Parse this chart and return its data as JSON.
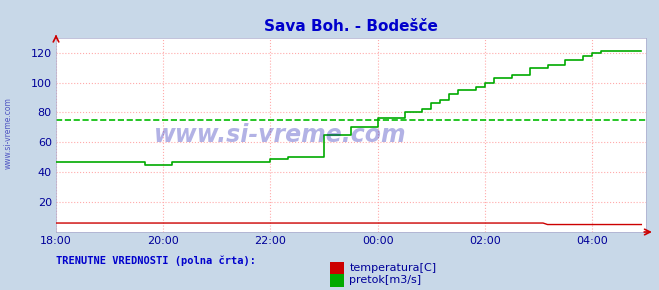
{
  "title": "Sava Boh. - Bodešče",
  "title_color": "#0000cc",
  "bg_color": "#c8d8e8",
  "plot_bg_color": "#ffffff",
  "grid_color": "#ffaaaa",
  "grid_style": ":",
  "xlabel_color": "#000099",
  "ylabel_color": "#000099",
  "watermark": "www.si-vreme.com",
  "watermark_color": "#0000aa",
  "legend_label": "TRENUTNE VREDNOSTI (polna črta):",
  "legend_label_color": "#0000cc",
  "temp_label": "temperatura[C]",
  "pretok_label": "pretok[m3/s]",
  "temp_color": "#cc0000",
  "pretok_color": "#00aa00",
  "avg_pretok_color": "#00bb00",
  "avg_pretok_value": 75.0,
  "ylim": [
    0,
    130
  ],
  "yticks": [
    20,
    40,
    60,
    80,
    100,
    120
  ],
  "xtick_labels": [
    "18:00",
    "20:00",
    "22:00",
    "00:00",
    "02:00",
    "04:00"
  ],
  "tick_positions": [
    0,
    24,
    48,
    72,
    96,
    120
  ],
  "arrow_color": "#cc0000",
  "side_label": "www.si-vreme.com",
  "figsize": [
    6.59,
    2.9
  ],
  "dpi": 100,
  "n_points": 132,
  "pretok": [
    47,
    47,
    47,
    47,
    47,
    47,
    47,
    47,
    47,
    47,
    47,
    47,
    47,
    47,
    47,
    47,
    47,
    47,
    47,
    47,
    45,
    45,
    45,
    45,
    45,
    45,
    47,
    47,
    47,
    47,
    47,
    47,
    47,
    47,
    47,
    47,
    47,
    47,
    47,
    47,
    47,
    47,
    47,
    47,
    47,
    47,
    47,
    47,
    49,
    49,
    49,
    49,
    50,
    50,
    50,
    50,
    50,
    50,
    50,
    50,
    65,
    65,
    65,
    65,
    65,
    65,
    70,
    70,
    70,
    70,
    70,
    70,
    76,
    76,
    76,
    76,
    76,
    76,
    80,
    80,
    80,
    80,
    82,
    82,
    86,
    86,
    88,
    88,
    92,
    92,
    95,
    95,
    95,
    95,
    97,
    97,
    100,
    100,
    103,
    103,
    103,
    103,
    105,
    105,
    105,
    105,
    110,
    110,
    110,
    110,
    112,
    112,
    112,
    112,
    115,
    115,
    115,
    115,
    118,
    118,
    120,
    120,
    121,
    121,
    121,
    121,
    121,
    121,
    121,
    121,
    121,
    121
  ],
  "temp": [
    6,
    6,
    6,
    6,
    6,
    6,
    6,
    6,
    6,
    6,
    6,
    6,
    6,
    6,
    6,
    6,
    6,
    6,
    6,
    6,
    6,
    6,
    6,
    6,
    6,
    6,
    6,
    6,
    6,
    6,
    6,
    6,
    6,
    6,
    6,
    6,
    6,
    6,
    6,
    6,
    6,
    6,
    6,
    6,
    6,
    6,
    6,
    6,
    6,
    6,
    6,
    6,
    6,
    6,
    6,
    6,
    6,
    6,
    6,
    6,
    6,
    6,
    6,
    6,
    6,
    6,
    6,
    6,
    6,
    6,
    6,
    6,
    6,
    6,
    6,
    6,
    6,
    6,
    6,
    6,
    6,
    6,
    6,
    6,
    6,
    6,
    6,
    6,
    6,
    6,
    6,
    6,
    6,
    6,
    6,
    6,
    6,
    6,
    6,
    6,
    6,
    6,
    6,
    6,
    6,
    6,
    6,
    6,
    6,
    6,
    5,
    5,
    5,
    5,
    5,
    5,
    5,
    5,
    5,
    5,
    5,
    5,
    5,
    5,
    5,
    5,
    5,
    5,
    5,
    5,
    5,
    5
  ]
}
